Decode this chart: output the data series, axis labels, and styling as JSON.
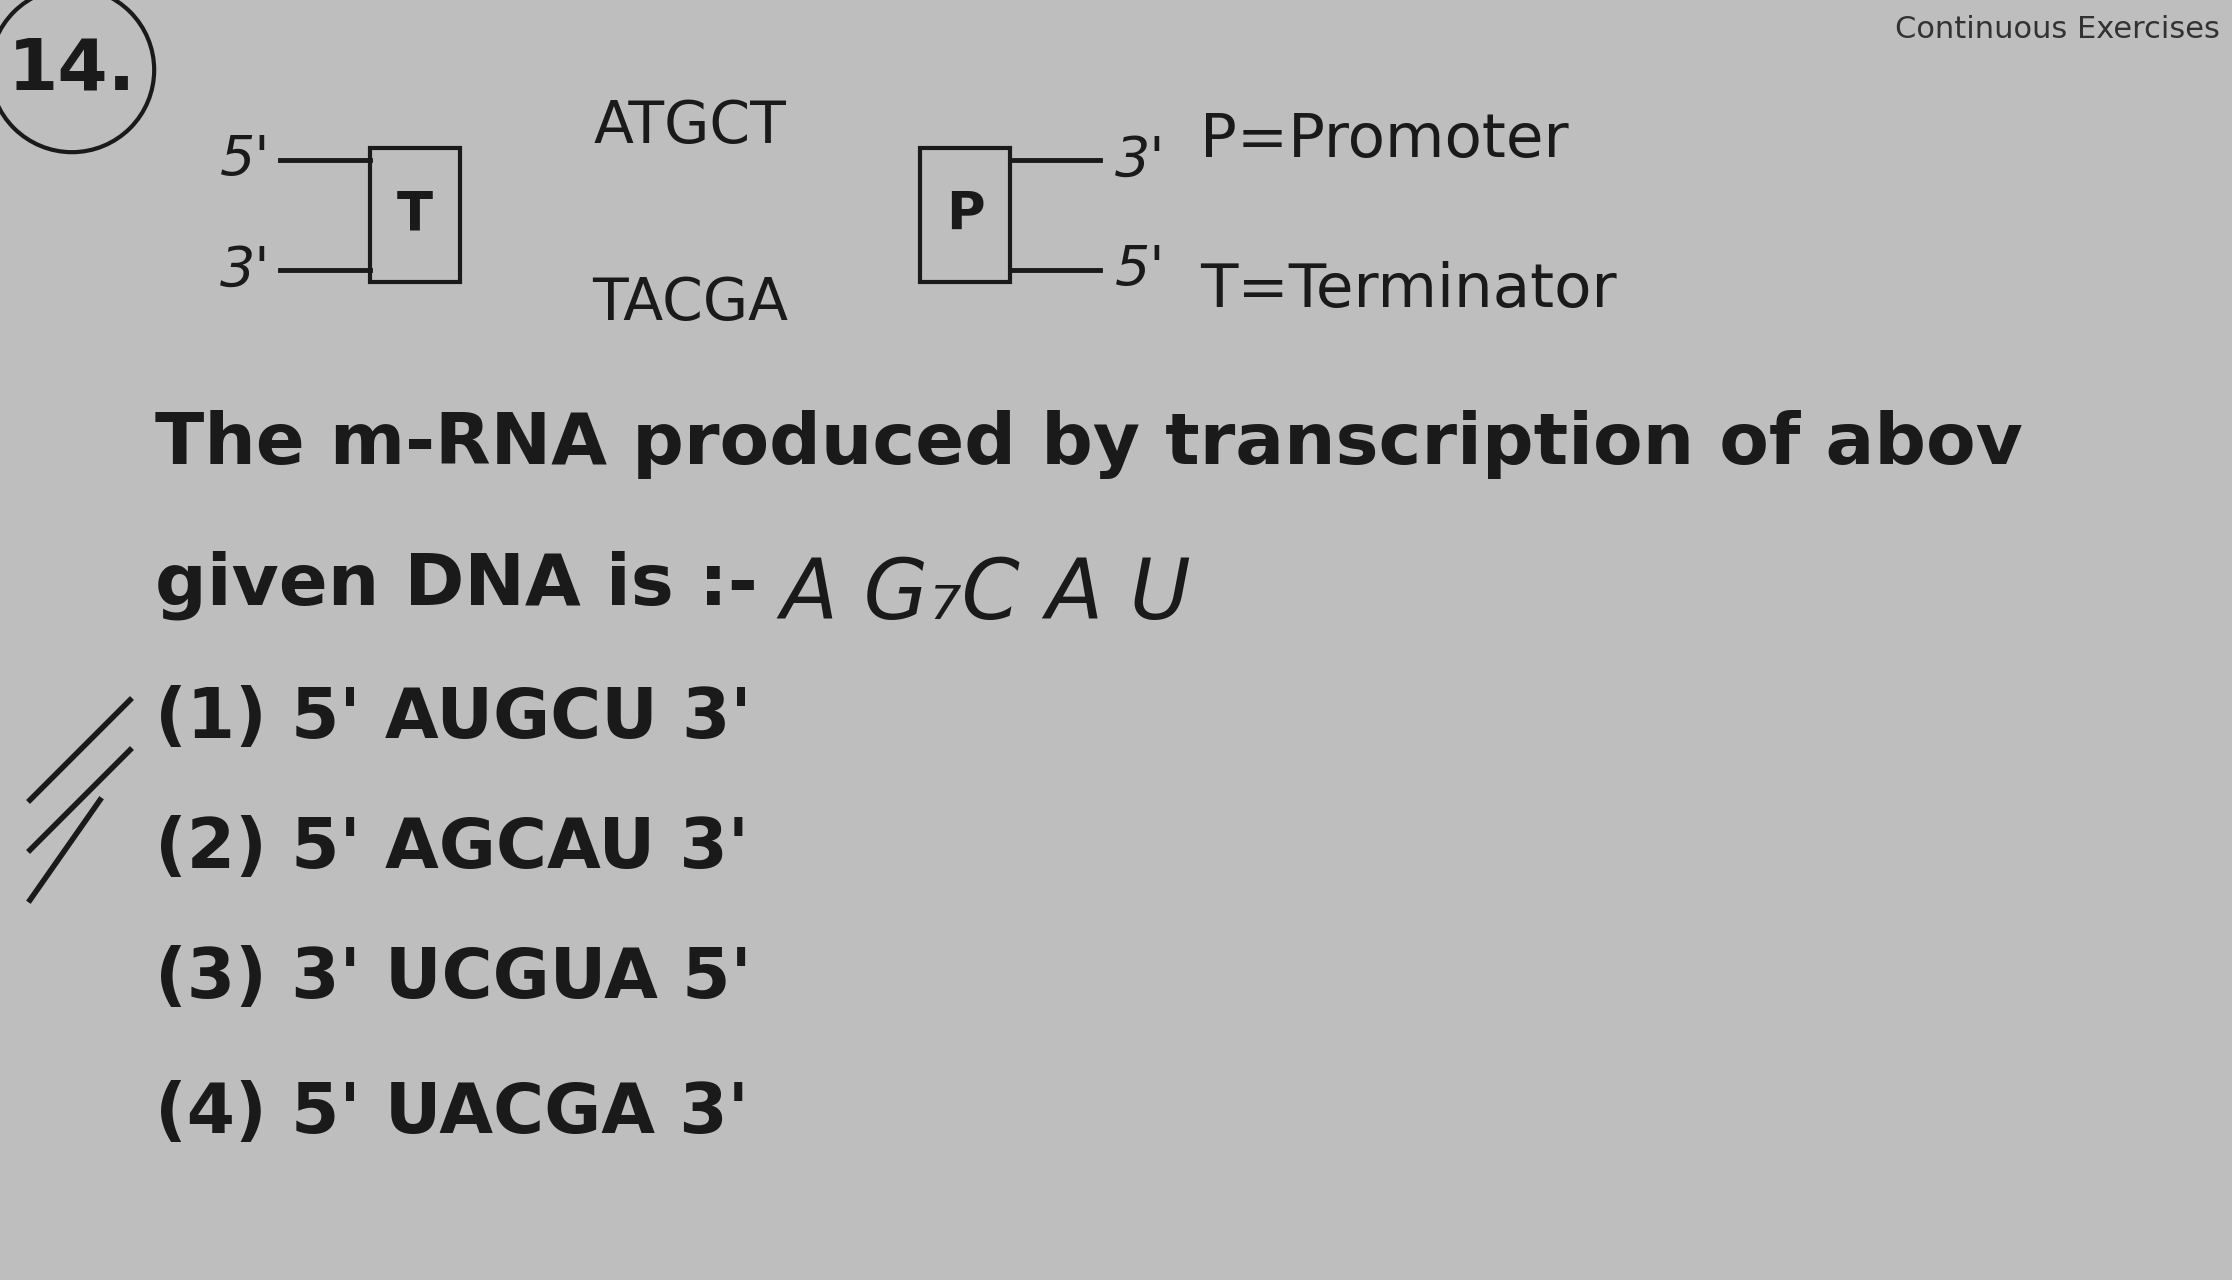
{
  "background_color": "#bebebe",
  "question_number": "14.",
  "diagram": {
    "strand1_label_left": "5'",
    "strand1_label_right": "3'",
    "strand2_label_left": "3'",
    "strand2_label_right": "5'",
    "T_box_label": "T",
    "P_box_label": "P",
    "seq_top": "ATGCT",
    "seq_bot": "TACGA",
    "legend_P": "P=Promoter",
    "legend_T": "T=Terminator"
  },
  "question_text": "The m-RNA produced by transcription of abov",
  "question_text2": "given DNA is :-",
  "handwritten_hint": "A G₇C A U",
  "options": [
    "(1) 5' AUGCU 3'",
    "(2) 5' AGCAU 3'",
    "(3) 3' UCGUA 5'",
    "(4) 5' UACGA 3'"
  ],
  "watermark": "Continuous Exercises",
  "text_color": "#1a1a1a",
  "font_size_question": 52,
  "font_size_options": 50,
  "font_size_diagram": 38,
  "font_size_number": 52,
  "font_size_legend": 44,
  "font_size_watermark": 22
}
